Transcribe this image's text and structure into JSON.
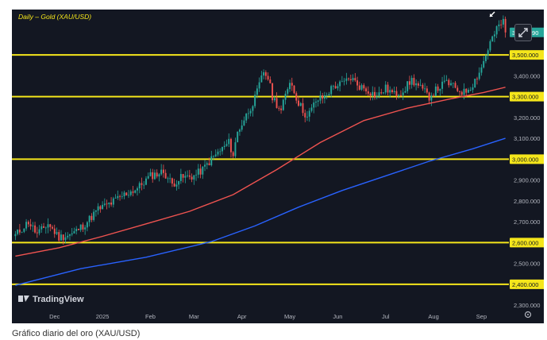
{
  "caption": "Gráfico diario del oro (XAU/USD)",
  "watermark": "TradingView",
  "colors": {
    "background": "#131722",
    "up": "#26a69a",
    "down": "#ef5350",
    "ma_red": "#ef5350",
    "ma_blue": "#2962ff",
    "level": "#f5e61b",
    "axis_text": "#b2b5be"
  },
  "chart_data": {
    "type": "line",
    "title": "Daily – Gold (XAU/USD)",
    "xlabel": "",
    "ylabel": "",
    "ylim": [
      2270,
      3710
    ],
    "grid": false,
    "y_ticks": [
      2300,
      2400,
      2500,
      2600,
      2700,
      2800,
      2900,
      3000,
      3100,
      3200,
      3300,
      3400,
      3500
    ],
    "y_tick_labels": [
      "2,300.000",
      "2,400.000",
      "2,500.000",
      "2,600.000",
      "2,700.000",
      "2,800.000",
      "2,900.000",
      "3,000.000",
      "3,100.000",
      "3,200.000",
      "3,300.000",
      "3,400.000",
      "3,500.000"
    ],
    "x_labels": [
      "Dec",
      "2025",
      "Feb",
      "Mar",
      "Apr",
      "May",
      "Jun",
      "Jul",
      "Aug",
      "Sep"
    ],
    "x_label_index": [
      18,
      40,
      62,
      82,
      104,
      126,
      148,
      170,
      192,
      214
    ],
    "horizontal_levels": [
      3500,
      3300,
      3000,
      2600,
      2400
    ],
    "horizontal_level_labels": [
      "3,500.000",
      "3,300.000",
      "3,000.000",
      "2,600.000",
      "2,400.000"
    ],
    "last_price": 3607.89,
    "last_price_label": "3,607.890",
    "anchors": [
      [
        0,
        2635
      ],
      [
        6,
        2700
      ],
      [
        10,
        2640
      ],
      [
        15,
        2690
      ],
      [
        20,
        2625
      ],
      [
        26,
        2640
      ],
      [
        32,
        2690
      ],
      [
        38,
        2760
      ],
      [
        44,
        2790
      ],
      [
        50,
        2830
      ],
      [
        56,
        2860
      ],
      [
        62,
        2920
      ],
      [
        68,
        2940
      ],
      [
        72,
        2880
      ],
      [
        76,
        2910
      ],
      [
        82,
        2920
      ],
      [
        86,
        2950
      ],
      [
        90,
        3000
      ],
      [
        94,
        3040
      ],
      [
        98,
        3080
      ],
      [
        100,
        3020
      ],
      [
        102,
        3130
      ],
      [
        106,
        3210
      ],
      [
        110,
        3290
      ],
      [
        114,
        3420
      ],
      [
        116,
        3390
      ],
      [
        118,
        3300
      ],
      [
        122,
        3230
      ],
      [
        126,
        3380
      ],
      [
        130,
        3270
      ],
      [
        134,
        3200
      ],
      [
        138,
        3280
      ],
      [
        142,
        3300
      ],
      [
        146,
        3350
      ],
      [
        150,
        3360
      ],
      [
        154,
        3390
      ],
      [
        158,
        3350
      ],
      [
        162,
        3330
      ],
      [
        166,
        3300
      ],
      [
        170,
        3340
      ],
      [
        174,
        3310
      ],
      [
        178,
        3330
      ],
      [
        182,
        3380
      ],
      [
        186,
        3340
      ],
      [
        190,
        3300
      ],
      [
        194,
        3340
      ],
      [
        198,
        3370
      ],
      [
        202,
        3340
      ],
      [
        206,
        3320
      ],
      [
        210,
        3360
      ],
      [
        214,
        3440
      ],
      [
        218,
        3560
      ],
      [
        222,
        3640
      ],
      [
        224,
        3660
      ],
      [
        225,
        3608
      ]
    ],
    "series": [
      {
        "name": "",
        "color": "#ef5350",
        "x": [
          0,
          20,
          40,
          60,
          80,
          100,
          120,
          140,
          160,
          180,
          200,
          215,
          225
        ],
        "y": [
          2535,
          2575,
          2630,
          2690,
          2750,
          2830,
          2950,
          3080,
          3185,
          3245,
          3290,
          3320,
          3345
        ]
      },
      {
        "name": "",
        "color": "#2962ff",
        "x": [
          0,
          30,
          60,
          90,
          110,
          130,
          150,
          170,
          190,
          210,
          225
        ],
        "y": [
          2395,
          2475,
          2530,
          2605,
          2680,
          2770,
          2850,
          2920,
          2990,
          3050,
          3100
        ]
      }
    ]
  }
}
